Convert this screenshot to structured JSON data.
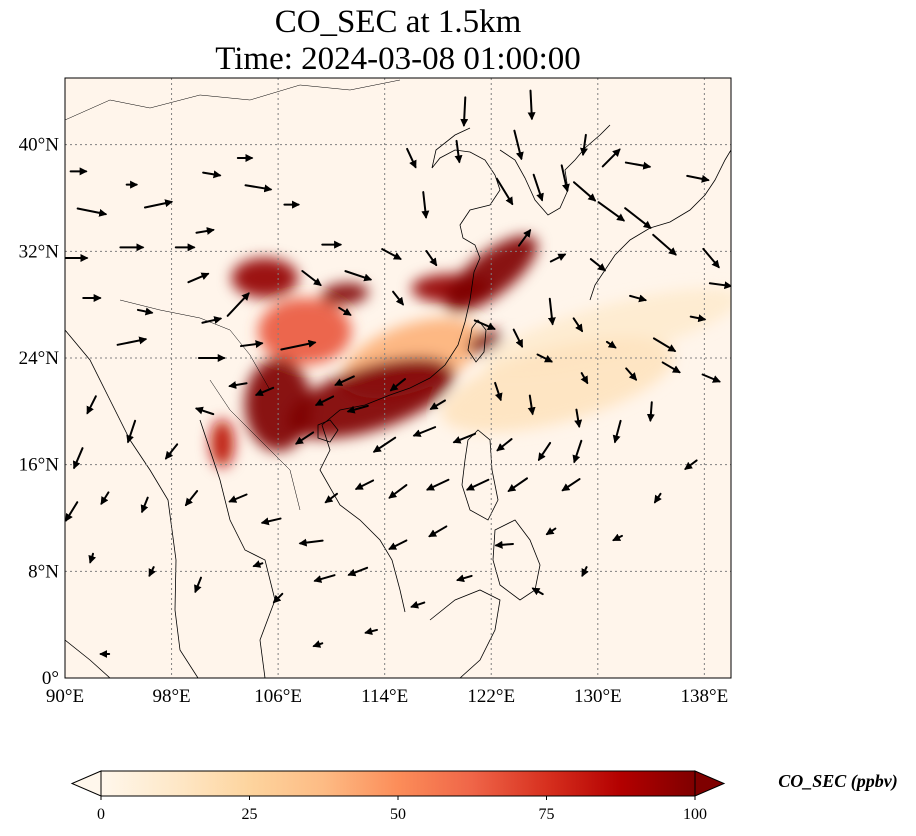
{
  "title": {
    "line1": "CO_SEC at 1.5km",
    "line2": "Time: 2024-03-08 01:00:00"
  },
  "map": {
    "lon_range": [
      90,
      140
    ],
    "lat_range": [
      0,
      45
    ],
    "lon_ticks": [
      {
        "value": 90,
        "label": "90°E"
      },
      {
        "value": 98,
        "label": "98°E"
      },
      {
        "value": 106,
        "label": "106°E"
      },
      {
        "value": 114,
        "label": "114°E"
      },
      {
        "value": 122,
        "label": "122°E"
      },
      {
        "value": 130,
        "label": "130°E"
      },
      {
        "value": 138,
        "label": "138°E"
      }
    ],
    "lat_ticks": [
      {
        "value": 0,
        "label": "0°"
      },
      {
        "value": 8,
        "label": "8°N"
      },
      {
        "value": 16,
        "label": "16°N"
      },
      {
        "value": 24,
        "label": "24°N"
      },
      {
        "value": 32,
        "label": "32°N"
      },
      {
        "value": 40,
        "label": "40°N"
      }
    ],
    "gridlines": true,
    "background_color": "#fff5eb",
    "coastline_color": "#000000",
    "vector_color": "#000000"
  },
  "colorbar": {
    "title": "CO_SEC (ppbv)",
    "colormap": "OrRd",
    "stops": [
      "#fff7ec",
      "#fee8c8",
      "#fdd49e",
      "#fdbb84",
      "#fc8d59",
      "#ef6548",
      "#d7301f",
      "#b30000",
      "#7f0000"
    ],
    "min": 0,
    "max": 100,
    "extend": "both",
    "ticks": [
      {
        "value": 0,
        "label": "0"
      },
      {
        "value": 25,
        "label": "25"
      },
      {
        "value": 50,
        "label": "50"
      },
      {
        "value": 75,
        "label": "75"
      },
      {
        "value": 100,
        "label": "100"
      }
    ]
  },
  "plumes": [
    {
      "lon": 113,
      "lat": 21,
      "rx": 6.5,
      "ry": 2.4,
      "rot": -18,
      "value": 100
    },
    {
      "lon": 106,
      "lat": 20.5,
      "rx": 2.5,
      "ry": 3.5,
      "rot": 0,
      "value": 100
    },
    {
      "lon": 108,
      "lat": 26,
      "rx": 3.5,
      "ry": 2.5,
      "rot": 0,
      "value": 65
    },
    {
      "lon": 105,
      "lat": 30,
      "rx": 2.5,
      "ry": 1.5,
      "rot": 0,
      "value": 95
    },
    {
      "lon": 111,
      "lat": 28.8,
      "rx": 1.8,
      "ry": 0.8,
      "rot": -5,
      "value": 100
    },
    {
      "lon": 122,
      "lat": 30.3,
      "rx": 4.2,
      "ry": 1.6,
      "rot": -38,
      "value": 100
    },
    {
      "lon": 119,
      "lat": 29.2,
      "rx": 3,
      "ry": 1.1,
      "rot": 0,
      "value": 95
    },
    {
      "lon": 121.5,
      "lat": 25.2,
      "rx": 1.4,
      "ry": 0.7,
      "rot": -25,
      "value": 100
    },
    {
      "lon": 101.8,
      "lat": 17.6,
      "rx": 0.9,
      "ry": 1.8,
      "rot": 0,
      "value": 85
    },
    {
      "lon": 116,
      "lat": 24,
      "rx": 5.5,
      "ry": 2.5,
      "rot": -20,
      "value": 40
    },
    {
      "lon": 127,
      "lat": 22,
      "rx": 9,
      "ry": 2.8,
      "rot": -15,
      "value": 15
    },
    {
      "lon": 131,
      "lat": 26,
      "rx": 10,
      "ry": 2,
      "rot": -15,
      "value": 10
    }
  ],
  "winds": [
    {
      "lon": 90.8,
      "lat": 31.5,
      "u": 1.6,
      "v": 0
    },
    {
      "lon": 95,
      "lat": 32.3,
      "u": 1.6,
      "v": 0
    },
    {
      "lon": 99,
      "lat": 32.3,
      "u": 1.3,
      "v": 0
    },
    {
      "lon": 92,
      "lat": 35,
      "u": 2,
      "v": -0.4
    },
    {
      "lon": 97,
      "lat": 35.5,
      "u": 1.9,
      "v": 0.4
    },
    {
      "lon": 100.5,
      "lat": 33.5,
      "u": 1.2,
      "v": 0.2
    },
    {
      "lon": 91,
      "lat": 38,
      "u": 1.1,
      "v": 0
    },
    {
      "lon": 95,
      "lat": 37,
      "u": 0.7,
      "v": 0
    },
    {
      "lon": 101,
      "lat": 37.8,
      "u": 1.2,
      "v": -0.2
    },
    {
      "lon": 104.5,
      "lat": 36.8,
      "u": 1.8,
      "v": -0.3
    },
    {
      "lon": 107,
      "lat": 35.5,
      "u": 1,
      "v": 0
    },
    {
      "lon": 103.5,
      "lat": 39,
      "u": 1,
      "v": 0
    },
    {
      "lon": 92,
      "lat": 28.5,
      "u": 1.2,
      "v": 0
    },
    {
      "lon": 96,
      "lat": 27.5,
      "u": 1,
      "v": -0.2
    },
    {
      "lon": 100,
      "lat": 30,
      "u": 1.4,
      "v": 0.6
    },
    {
      "lon": 101,
      "lat": 26.8,
      "u": 1.3,
      "v": 0.3
    },
    {
      "lon": 95,
      "lat": 25.2,
      "u": 2,
      "v": 0.4
    },
    {
      "lon": 104,
      "lat": 25,
      "u": 1.5,
      "v": 0.2
    },
    {
      "lon": 107.5,
      "lat": 24.9,
      "u": 2.4,
      "v": 0.5
    },
    {
      "lon": 103,
      "lat": 28,
      "u": 1.5,
      "v": 1.6
    },
    {
      "lon": 101,
      "lat": 24,
      "u": 1.8,
      "v": 0
    },
    {
      "lon": 108.5,
      "lat": 30,
      "u": 1.3,
      "v": -1
    },
    {
      "lon": 112,
      "lat": 30.2,
      "u": 1.8,
      "v": -0.6
    },
    {
      "lon": 110,
      "lat": 32.5,
      "u": 1.3,
      "v": 0
    },
    {
      "lon": 114.5,
      "lat": 31.8,
      "u": 1.3,
      "v": -0.7
    },
    {
      "lon": 111,
      "lat": 27.5,
      "u": 0.8,
      "v": -0.5
    },
    {
      "lon": 115,
      "lat": 28.5,
      "u": 0.7,
      "v": -0.9
    },
    {
      "lon": 117.5,
      "lat": 31.5,
      "u": 0.7,
      "v": -1
    },
    {
      "lon": 117,
      "lat": 35.5,
      "u": 0.2,
      "v": -1.8
    },
    {
      "lon": 116,
      "lat": 39,
      "u": 0.6,
      "v": -1.3
    },
    {
      "lon": 119.5,
      "lat": 39.5,
      "u": 0.2,
      "v": -1.5
    },
    {
      "lon": 120,
      "lat": 42.5,
      "u": -0.1,
      "v": -2
    },
    {
      "lon": 124,
      "lat": 40,
      "u": 0.5,
      "v": -2
    },
    {
      "lon": 125,
      "lat": 43,
      "u": 0.1,
      "v": -2
    },
    {
      "lon": 123,
      "lat": 36.5,
      "u": 1.1,
      "v": -1.8
    },
    {
      "lon": 125.5,
      "lat": 36.8,
      "u": 0.6,
      "v": -1.8
    },
    {
      "lon": 127.5,
      "lat": 37.5,
      "u": 0.4,
      "v": -1.8
    },
    {
      "lon": 129,
      "lat": 40,
      "u": -0.2,
      "v": -1.4
    },
    {
      "lon": 129,
      "lat": 36.5,
      "u": 1.5,
      "v": -1.3
    },
    {
      "lon": 131,
      "lat": 35,
      "u": 1.8,
      "v": -1.3
    },
    {
      "lon": 133,
      "lat": 34.5,
      "u": 1.8,
      "v": -1.4
    },
    {
      "lon": 135,
      "lat": 32.5,
      "u": 1.6,
      "v": -1.4
    },
    {
      "lon": 131,
      "lat": 39,
      "u": 1.2,
      "v": 1.2
    },
    {
      "lon": 133,
      "lat": 38.5,
      "u": 1.7,
      "v": -0.3
    },
    {
      "lon": 137.5,
      "lat": 37.5,
      "u": 1.5,
      "v": -0.3
    },
    {
      "lon": 138.5,
      "lat": 31.5,
      "u": 1.1,
      "v": -1.3
    },
    {
      "lon": 139.2,
      "lat": 29.5,
      "u": 1.5,
      "v": -0.2
    },
    {
      "lon": 133,
      "lat": 28.5,
      "u": 1.1,
      "v": -0.3
    },
    {
      "lon": 130,
      "lat": 31,
      "u": 1,
      "v": -0.8
    },
    {
      "lon": 127,
      "lat": 31.5,
      "u": 1,
      "v": 0.5
    },
    {
      "lon": 124.5,
      "lat": 33,
      "u": 0.8,
      "v": 1.1
    },
    {
      "lon": 126.5,
      "lat": 27.5,
      "u": 0.2,
      "v": -1.8
    },
    {
      "lon": 128.5,
      "lat": 26.5,
      "u": 0.6,
      "v": -0.9
    },
    {
      "lon": 131,
      "lat": 25,
      "u": 0.6,
      "v": -0.4
    },
    {
      "lon": 135,
      "lat": 25,
      "u": 1.5,
      "v": -0.9
    },
    {
      "lon": 137.5,
      "lat": 27,
      "u": 1,
      "v": -0.2
    },
    {
      "lon": 121.5,
      "lat": 26.5,
      "u": 1.4,
      "v": -0.6
    },
    {
      "lon": 124,
      "lat": 25.5,
      "u": 0.6,
      "v": -1.2
    },
    {
      "lon": 126,
      "lat": 24,
      "u": 1,
      "v": -0.5
    },
    {
      "lon": 129,
      "lat": 22.5,
      "u": 0.4,
      "v": -0.7
    },
    {
      "lon": 132.5,
      "lat": 22.8,
      "u": 0.7,
      "v": -0.8
    },
    {
      "lon": 135.5,
      "lat": 23.3,
      "u": 1.2,
      "v": -0.7
    },
    {
      "lon": 138.5,
      "lat": 22.5,
      "u": 1.2,
      "v": -0.5
    },
    {
      "lon": 122.5,
      "lat": 21.5,
      "u": 0.4,
      "v": -1.2
    },
    {
      "lon": 125,
      "lat": 20.5,
      "u": 0.2,
      "v": -1.3
    },
    {
      "lon": 128.5,
      "lat": 19.5,
      "u": 0.2,
      "v": -1.2
    },
    {
      "lon": 131.5,
      "lat": 18.5,
      "u": -0.4,
      "v": -1.5
    },
    {
      "lon": 134,
      "lat": 20,
      "u": -0.1,
      "v": -1.3
    },
    {
      "lon": 137,
      "lat": 16,
      "u": -0.8,
      "v": -0.6
    },
    {
      "lon": 126,
      "lat": 17,
      "u": -0.8,
      "v": -1.2
    },
    {
      "lon": 128.5,
      "lat": 17,
      "u": -0.5,
      "v": -1.5
    },
    {
      "lon": 123,
      "lat": 17.5,
      "u": -1,
      "v": -0.8
    },
    {
      "lon": 120,
      "lat": 18,
      "u": -1.5,
      "v": -0.6
    },
    {
      "lon": 117,
      "lat": 18.5,
      "u": -1.5,
      "v": -0.6
    },
    {
      "lon": 114,
      "lat": 17.5,
      "u": -1.5,
      "v": -1
    },
    {
      "lon": 112,
      "lat": 20.2,
      "u": -1.4,
      "v": -0.4
    },
    {
      "lon": 109.5,
      "lat": 20.8,
      "u": -1.2,
      "v": -0.6
    },
    {
      "lon": 111,
      "lat": 22.3,
      "u": -1.3,
      "v": -0.6
    },
    {
      "lon": 115,
      "lat": 22,
      "u": -1,
      "v": -0.8
    },
    {
      "lon": 118,
      "lat": 20.5,
      "u": -1,
      "v": -0.6
    },
    {
      "lon": 108,
      "lat": 18,
      "u": -1.2,
      "v": -0.8
    },
    {
      "lon": 105,
      "lat": 21.5,
      "u": -1.2,
      "v": -0.5
    },
    {
      "lon": 103,
      "lat": 22,
      "u": -1.2,
      "v": -0.2
    },
    {
      "lon": 100.5,
      "lat": 20,
      "u": -1.2,
      "v": 0.4
    },
    {
      "lon": 98,
      "lat": 17,
      "u": -0.8,
      "v": -1
    },
    {
      "lon": 95,
      "lat": 18.5,
      "u": -0.5,
      "v": -1.5
    },
    {
      "lon": 92,
      "lat": 20.5,
      "u": -0.6,
      "v": -1.2
    },
    {
      "lon": 91,
      "lat": 16.5,
      "u": -0.6,
      "v": -1.4
    },
    {
      "lon": 90.5,
      "lat": 12.5,
      "u": -0.8,
      "v": -1.3
    },
    {
      "lon": 93,
      "lat": 13.5,
      "u": -0.5,
      "v": -0.8
    },
    {
      "lon": 96,
      "lat": 13,
      "u": -0.4,
      "v": -1
    },
    {
      "lon": 99.5,
      "lat": 13.5,
      "u": -0.8,
      "v": -1
    },
    {
      "lon": 103,
      "lat": 13.5,
      "u": -1.2,
      "v": -0.5
    },
    {
      "lon": 105.5,
      "lat": 11.8,
      "u": -1.3,
      "v": -0.3
    },
    {
      "lon": 108.5,
      "lat": 10.2,
      "u": -1.6,
      "v": -0.2
    },
    {
      "lon": 110,
      "lat": 13.5,
      "u": -0.8,
      "v": -0.6
    },
    {
      "lon": 112.5,
      "lat": 14.5,
      "u": -1.2,
      "v": -0.6
    },
    {
      "lon": 115,
      "lat": 14,
      "u": -1.2,
      "v": -0.9
    },
    {
      "lon": 118,
      "lat": 14.5,
      "u": -1.5,
      "v": -0.7
    },
    {
      "lon": 121,
      "lat": 14.5,
      "u": -1.5,
      "v": -0.7
    },
    {
      "lon": 124,
      "lat": 14.5,
      "u": -1.3,
      "v": -0.9
    },
    {
      "lon": 128,
      "lat": 14.5,
      "u": -1.2,
      "v": -0.8
    },
    {
      "lon": 118,
      "lat": 11,
      "u": -1.2,
      "v": -0.7
    },
    {
      "lon": 115,
      "lat": 10,
      "u": -1.2,
      "v": -0.6
    },
    {
      "lon": 112,
      "lat": 8,
      "u": -1.3,
      "v": -0.5
    },
    {
      "lon": 123,
      "lat": 10,
      "u": -1.2,
      "v": -0.1
    },
    {
      "lon": 126.5,
      "lat": 11,
      "u": -0.6,
      "v": -0.4
    },
    {
      "lon": 109.5,
      "lat": 7.5,
      "u": -1.4,
      "v": -0.4
    },
    {
      "lon": 106,
      "lat": 6,
      "u": -0.6,
      "v": -0.6
    },
    {
      "lon": 100,
      "lat": 7,
      "u": -0.4,
      "v": -1
    },
    {
      "lon": 96.5,
      "lat": 8,
      "u": -0.3,
      "v": -0.6
    },
    {
      "lon": 92,
      "lat": 9,
      "u": -0.2,
      "v": -0.6
    },
    {
      "lon": 104.5,
      "lat": 8.5,
      "u": -0.6,
      "v": -0.2
    },
    {
      "lon": 116.5,
      "lat": 5.5,
      "u": -0.9,
      "v": -0.3
    },
    {
      "lon": 120,
      "lat": 7.5,
      "u": -1,
      "v": -0.3
    },
    {
      "lon": 113,
      "lat": 3.5,
      "u": -0.8,
      "v": -0.2
    },
    {
      "lon": 109,
      "lat": 2.5,
      "u": -0.6,
      "v": -0.2
    },
    {
      "lon": 93,
      "lat": 1.8,
      "u": -0.6,
      "v": 0
    },
    {
      "lon": 125.5,
      "lat": 6.5,
      "u": -0.7,
      "v": 0.4
    },
    {
      "lon": 129,
      "lat": 8,
      "u": -0.3,
      "v": -0.6
    },
    {
      "lon": 134.5,
      "lat": 13.5,
      "u": -0.4,
      "v": -0.6
    },
    {
      "lon": 131.5,
      "lat": 10.5,
      "u": -0.6,
      "v": -0.3
    }
  ]
}
